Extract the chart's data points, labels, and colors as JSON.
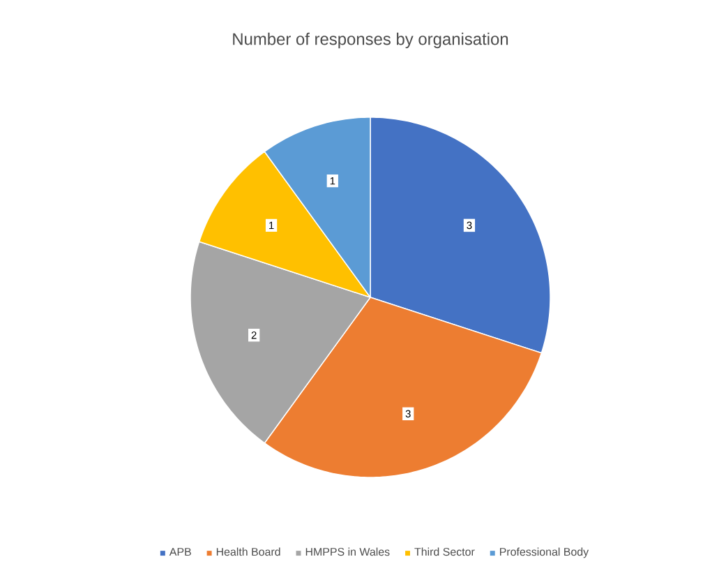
{
  "chart_data": {
    "type": "pie",
    "title": "Number of responses by organisation",
    "categories": [
      "APB",
      "Health Board",
      "HMPPS in Wales",
      "Third Sector",
      "Professional Body"
    ],
    "values": [
      3,
      3,
      2,
      1,
      1
    ],
    "colors": [
      "#4472c4",
      "#ed7d31",
      "#a5a5a5",
      "#ffc000",
      "#5b9bd5"
    ],
    "data_labels": true,
    "legend": "bottom"
  }
}
